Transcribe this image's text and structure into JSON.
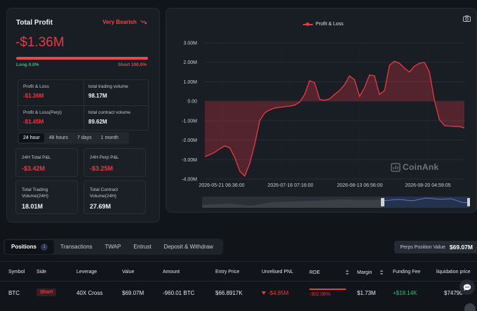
{
  "summary": {
    "title": "Total Profit",
    "sentiment": "Very Bearish",
    "total_profit": "-$1.36M",
    "long_label": "Long 0.0%",
    "short_label": "Short 100.0%",
    "long_ratio": 0.0,
    "short_ratio": 1.0,
    "stats": [
      {
        "label": "Profit & Loss",
        "value": "-$1.36M"
      },
      {
        "label": "total trading volume",
        "value": "98.17M"
      },
      {
        "label": "Profit & Loss(Perp)",
        "value": "-$1.45M"
      },
      {
        "label": "total contract volume",
        "value": "89.62M"
      }
    ],
    "periods": [
      "24 hour",
      "48 hours",
      "7 days",
      "1 month"
    ],
    "active_period": "24 hour",
    "cards": [
      {
        "label": "24H Total P&L",
        "value": "-$3.42M"
      },
      {
        "label": "24H Perp P&L",
        "value": "-$3.25M"
      },
      {
        "label": "Total Trading Volume(24H)",
        "value": "18.01M"
      },
      {
        "label": "Total Contract Volume(24H)",
        "value": "27.69M"
      }
    ]
  },
  "chart": {
    "watermark": "CoinAnk",
    "camera_icon": "camera-icon"
  },
  "chart_data": {
    "type": "area",
    "series": [
      {
        "name": "Profit & Loss",
        "color": "#ea3943"
      }
    ],
    "yticks": [
      "3.00M",
      "2.00M",
      "1.00M",
      "0.00",
      "-1.00M",
      "-2.00M",
      "-3.00M",
      "-4.00M"
    ],
    "ylim": [
      -4,
      3
    ],
    "xticks": [
      "2026-05-21 06:36:00",
      "2026-07-16 07:16:00",
      "2026-08-13 06:56:00",
      "2026-08-20 04:59:05"
    ],
    "values_millions": [
      -2.85,
      -2.75,
      -2.62,
      -2.45,
      -2.3,
      -2.4,
      -2.9,
      -3.6,
      -3.85,
      -3.2,
      -2.2,
      -1.0,
      -0.6,
      -0.45,
      -0.35,
      -0.32,
      -0.28,
      -0.25,
      -0.2,
      -0.05,
      0.35,
      1.05,
      0.95,
      0.1,
      0.05,
      0.12,
      0.35,
      0.55,
      0.85,
      1.3,
      1.1,
      0.25,
      0.7,
      1.35,
      1.3,
      0.35,
      0.55,
      1.85,
      2.05,
      1.95,
      1.7,
      1.5,
      1.8,
      1.95,
      2.0,
      1.5,
      0.05,
      -0.95,
      -1.25,
      -1.28,
      -1.3,
      -1.3,
      -1.38
    ],
    "grid": true
  },
  "positions": {
    "tabs": [
      {
        "label": "Positions",
        "badge": "1"
      },
      {
        "label": "Transactions"
      },
      {
        "label": "TWAP"
      },
      {
        "label": "Entrust"
      },
      {
        "label": "Deposit & Withdraw"
      }
    ],
    "ppv_label": "Perps Position Value",
    "ppv_value": "$69.07M",
    "columns": [
      "Symbol",
      "Side",
      "Leverage",
      "Value",
      "Amount",
      "Entry Price",
      "Unrelised PNL",
      "ROE",
      "Margin",
      "Funding Fee",
      "liquidation price"
    ],
    "row": {
      "symbol": "BTC",
      "side": "Short",
      "leverage": "40X Cross",
      "value": "$69.07M",
      "amount": "-960.01 BTC",
      "entry_price": "$66.8917K",
      "pnl": "-$4.85M",
      "roe": "-302.06%",
      "margin": "$1.73M",
      "funding_fee": "+$18.14K",
      "liquidation_price": "$74790"
    }
  }
}
